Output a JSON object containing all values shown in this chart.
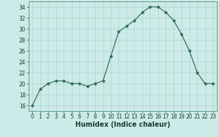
{
  "x": [
    0,
    1,
    2,
    3,
    4,
    5,
    6,
    7,
    8,
    9,
    10,
    11,
    12,
    13,
    14,
    15,
    16,
    17,
    18,
    19,
    20,
    21,
    22,
    23
  ],
  "y": [
    16,
    19,
    20,
    20.5,
    20.5,
    20,
    20,
    19.5,
    20,
    20.5,
    25,
    29.5,
    30.5,
    31.5,
    33,
    34,
    34,
    33,
    31.5,
    29,
    26,
    22,
    20,
    20
  ],
  "line_color": "#2e6b5e",
  "marker": "D",
  "marker_size": 2.2,
  "bg_color": "#cceae7",
  "grid_color": "#aad4d0",
  "xlabel": "Humidex (Indice chaleur)",
  "ylim": [
    15,
    35
  ],
  "xlim": [
    -0.5,
    23.5
  ],
  "yticks": [
    16,
    18,
    20,
    22,
    24,
    26,
    28,
    30,
    32,
    34
  ],
  "xticks": [
    0,
    1,
    2,
    3,
    4,
    5,
    6,
    7,
    8,
    9,
    10,
    11,
    12,
    13,
    14,
    15,
    16,
    17,
    18,
    19,
    20,
    21,
    22,
    23
  ],
  "xlabel_fontsize": 7.0,
  "tick_fontsize": 5.5,
  "line_width": 0.9
}
